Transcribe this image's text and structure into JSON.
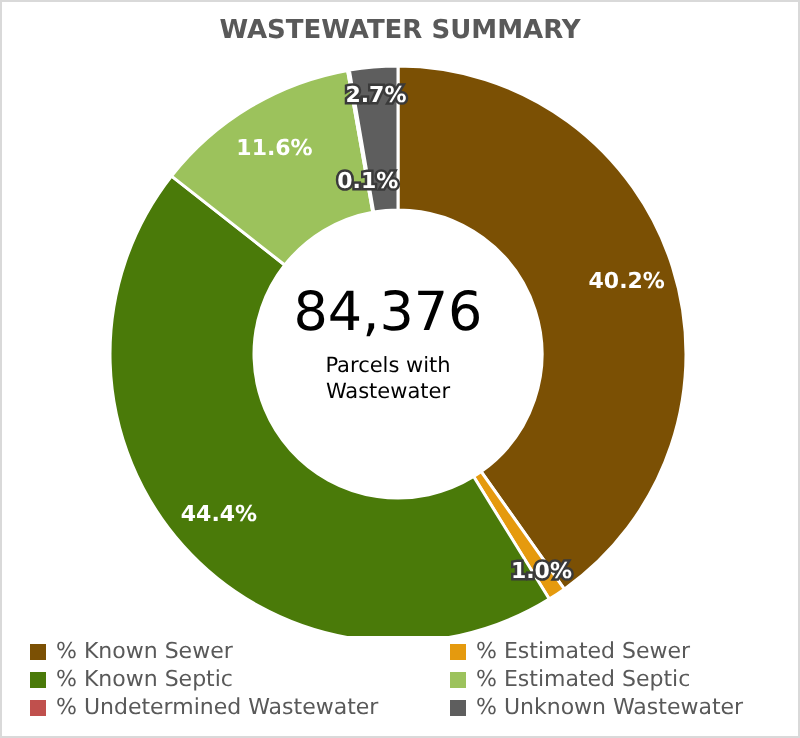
{
  "chart_data": {
    "type": "donut",
    "title": "WASTEWATER SUMMARY",
    "categories": [
      "% Known Sewer",
      "% Estimated Sewer",
      "% Known Septic",
      "% Estimated Septic",
      "% Undetermined Wastewater",
      "% Unknown Wastewater"
    ],
    "values": [
      40.2,
      1.0,
      44.4,
      11.6,
      0.1,
      2.7
    ],
    "colors": [
      "#7b5004",
      "#e59a0e",
      "#4a7a09",
      "#9cc25c",
      "#c0504d",
      "#5e5e5e"
    ],
    "value_labels": [
      "40.2%",
      "1.0%",
      "44.4%",
      "11.6%",
      "0.1%",
      "2.7%"
    ],
    "annotations": [
      "84,376",
      "Parcels with Wastewater"
    ],
    "legend": "bottom"
  }
}
